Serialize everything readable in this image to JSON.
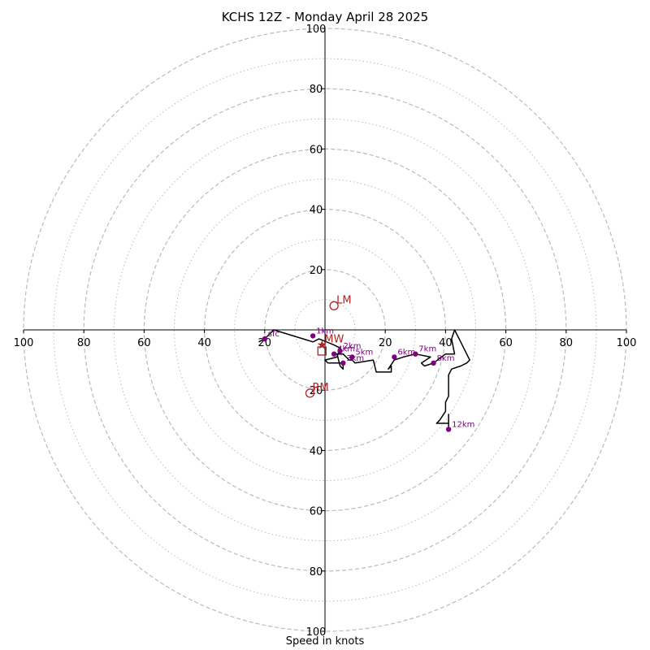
{
  "chart_data": {
    "type": "hodograph",
    "title": "KCHS 12Z - Monday April 28 2025",
    "xlabel": "Speed in knots",
    "range": 100,
    "major_rings": [
      20,
      40,
      60,
      80,
      100
    ],
    "minor_rings": [
      10,
      30,
      50,
      70,
      90
    ],
    "x_tick_labels": [
      "100",
      "80",
      "60",
      "40",
      "20",
      "20",
      "40",
      "60",
      "80",
      "100"
    ],
    "x_tick_values": [
      -100,
      -80,
      -60,
      -40,
      -20,
      20,
      40,
      60,
      80,
      100
    ],
    "y_tick_labels": [
      "100",
      "80",
      "60",
      "40",
      "20",
      "20",
      "40",
      "60",
      "80",
      "100"
    ],
    "y_tick_values": [
      100,
      80,
      60,
      40,
      20,
      -20,
      -40,
      -60,
      -80,
      -100
    ],
    "trace": [
      [
        -22,
        -4
      ],
      [
        -20,
        -3
      ],
      [
        -19,
        -2
      ],
      [
        -17,
        0
      ],
      [
        -4,
        -4
      ],
      [
        -2,
        -3
      ],
      [
        3,
        -5
      ],
      [
        5,
        -6
      ],
      [
        4,
        -9
      ],
      [
        0,
        -10
      ],
      [
        1,
        -11
      ],
      [
        3,
        -11
      ],
      [
        5,
        -11
      ],
      [
        6,
        -11
      ],
      [
        6,
        -13
      ],
      [
        5,
        -12
      ],
      [
        4,
        -8
      ],
      [
        6,
        -8
      ],
      [
        7,
        -9
      ],
      [
        8,
        -10
      ],
      [
        9,
        -10
      ],
      [
        10,
        -11
      ],
      [
        16,
        -10
      ],
      [
        17,
        -14
      ],
      [
        22,
        -14
      ],
      [
        22,
        -12
      ],
      [
        21,
        -13
      ],
      [
        23,
        -10
      ],
      [
        26,
        -9
      ],
      [
        30,
        -8
      ],
      [
        35,
        -9
      ],
      [
        32,
        -11
      ],
      [
        33,
        -12
      ],
      [
        36,
        -11
      ],
      [
        40,
        -8
      ],
      [
        43,
        -8
      ],
      [
        42,
        -3
      ],
      [
        43,
        0
      ],
      [
        45,
        -4
      ],
      [
        47,
        -8
      ],
      [
        48,
        -10
      ],
      [
        47,
        -11
      ],
      [
        45,
        -12
      ],
      [
        42,
        -13
      ],
      [
        41,
        -15
      ],
      [
        41,
        -22
      ],
      [
        40,
        -24
      ],
      [
        40,
        -27
      ],
      [
        38,
        -30
      ],
      [
        37,
        -31
      ],
      [
        41,
        -31
      ],
      [
        41,
        -28
      ],
      [
        41,
        -33
      ]
    ],
    "heights": [
      {
        "label": "sfc",
        "u": -20,
        "v": -3
      },
      {
        "label": "1km",
        "u": -4,
        "v": -2
      },
      {
        "label": "2km",
        "u": 5,
        "v": -7
      },
      {
        "label": "3km",
        "u": 6,
        "v": -11
      },
      {
        "label": "4km",
        "u": 3,
        "v": -8
      },
      {
        "label": "5km",
        "u": 9,
        "v": -9
      },
      {
        "label": "6km",
        "u": 23,
        "v": -9
      },
      {
        "label": "7km",
        "u": 30,
        "v": -8
      },
      {
        "label": "8km",
        "u": 36,
        "v": -11
      },
      {
        "label": "12km",
        "u": 41,
        "v": -33
      }
    ],
    "markers": [
      {
        "label": "LM",
        "u": 3,
        "v": 8,
        "shape": "circle"
      },
      {
        "label": "RM",
        "u": -5,
        "v": -21,
        "shape": "circle"
      },
      {
        "label": "MW",
        "u": -1,
        "v": -5,
        "shape": "star"
      },
      {
        "label": "",
        "u": -1,
        "v": -7,
        "shape": "square"
      }
    ],
    "colors": {
      "trace": "#000000",
      "heights": "#800080",
      "markers": "#b22222",
      "grid": "#bbbbbb"
    }
  }
}
